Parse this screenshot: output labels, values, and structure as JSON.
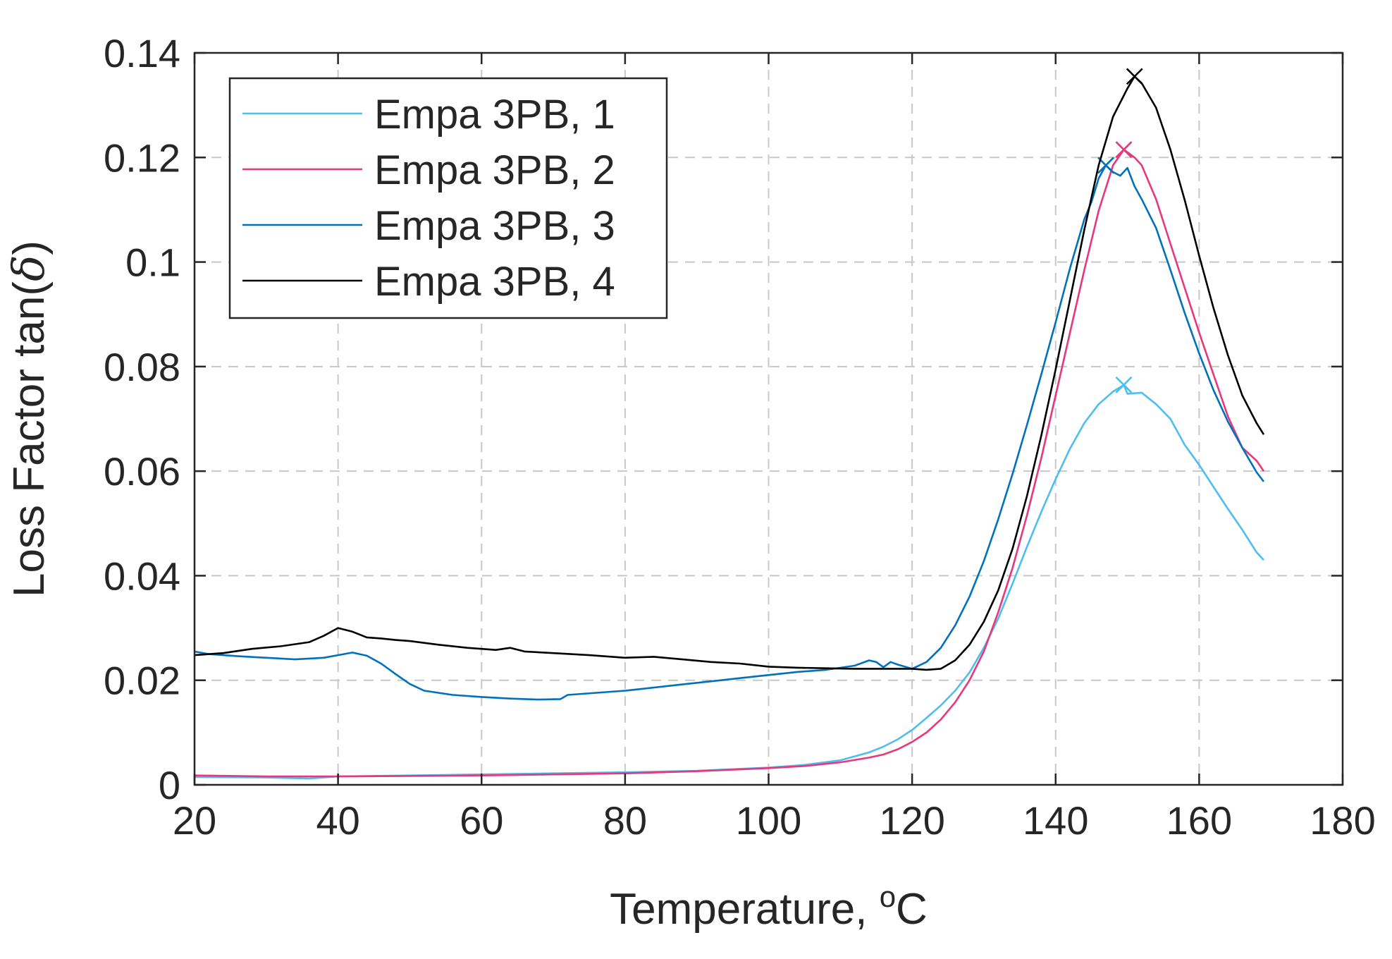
{
  "chart_data": {
    "type": "line",
    "title": "",
    "xlabel": "Temperature, ",
    "xlabel_unit_sup": "o",
    "xlabel_unit": "C",
    "ylabel": "Loss Factor tan(",
    "ylabel_symbol": "δ",
    "ylabel_close": ")",
    "xlim": [
      20,
      180
    ],
    "ylim": [
      0,
      0.14
    ],
    "xticks": [
      20,
      40,
      60,
      80,
      100,
      120,
      140,
      160,
      180
    ],
    "xtick_labels": [
      "20",
      "40",
      "60",
      "80",
      "100",
      "120",
      "140",
      "160",
      "180"
    ],
    "yticks": [
      0,
      0.02,
      0.04,
      0.06,
      0.08,
      0.1,
      0.12,
      0.14
    ],
    "ytick_labels": [
      "0",
      "0.02",
      "0.04",
      "0.06",
      "0.08",
      "0.1",
      "0.12",
      "0.14"
    ],
    "grid": true,
    "legend_position": "top-left",
    "series": [
      {
        "name": "Empa 3PB, 1",
        "color": "#4DBEEE",
        "peak": [
          149.5,
          0.0765
        ],
        "points": [
          [
            20,
            0.0015
          ],
          [
            30,
            0.0014
          ],
          [
            36,
            0.0012
          ],
          [
            40,
            0.0016
          ],
          [
            50,
            0.0018
          ],
          [
            60,
            0.002
          ],
          [
            70,
            0.0022
          ],
          [
            80,
            0.0024
          ],
          [
            90,
            0.0027
          ],
          [
            100,
            0.0033
          ],
          [
            105,
            0.0038
          ],
          [
            110,
            0.0047
          ],
          [
            114,
            0.0062
          ],
          [
            116,
            0.0073
          ],
          [
            118,
            0.0087
          ],
          [
            120,
            0.0105
          ],
          [
            122,
            0.0128
          ],
          [
            124,
            0.0152
          ],
          [
            126,
            0.018
          ],
          [
            128,
            0.0215
          ],
          [
            130,
            0.0262
          ],
          [
            132,
            0.0318
          ],
          [
            134,
            0.0385
          ],
          [
            136,
            0.0455
          ],
          [
            138,
            0.0522
          ],
          [
            140,
            0.0585
          ],
          [
            142,
            0.0643
          ],
          [
            144,
            0.0692
          ],
          [
            146,
            0.0728
          ],
          [
            148,
            0.0752
          ],
          [
            149.5,
            0.0765
          ],
          [
            150,
            0.0748
          ],
          [
            152,
            0.075
          ],
          [
            154,
            0.0728
          ],
          [
            156,
            0.07
          ],
          [
            158,
            0.065
          ],
          [
            160,
            0.0612
          ],
          [
            162,
            0.057
          ],
          [
            164,
            0.0528
          ],
          [
            166,
            0.0488
          ],
          [
            168,
            0.0445
          ],
          [
            169,
            0.043
          ]
        ]
      },
      {
        "name": "Empa 3PB, 2",
        "color": "#E8377A",
        "peak": [
          149.5,
          0.1215
        ],
        "points": [
          [
            20,
            0.0018
          ],
          [
            30,
            0.0016
          ],
          [
            40,
            0.0016
          ],
          [
            50,
            0.0017
          ],
          [
            60,
            0.0018
          ],
          [
            70,
            0.002
          ],
          [
            80,
            0.0022
          ],
          [
            90,
            0.0026
          ],
          [
            100,
            0.0032
          ],
          [
            105,
            0.0036
          ],
          [
            110,
            0.0043
          ],
          [
            114,
            0.0052
          ],
          [
            116,
            0.0058
          ],
          [
            118,
            0.0068
          ],
          [
            120,
            0.0082
          ],
          [
            122,
            0.01
          ],
          [
            124,
            0.0125
          ],
          [
            126,
            0.0158
          ],
          [
            128,
            0.02
          ],
          [
            130,
            0.0255
          ],
          [
            132,
            0.033
          ],
          [
            134,
            0.0415
          ],
          [
            136,
            0.0515
          ],
          [
            138,
            0.0625
          ],
          [
            140,
            0.0745
          ],
          [
            142,
            0.0865
          ],
          [
            144,
            0.0985
          ],
          [
            146,
            0.1098
          ],
          [
            148,
            0.1185
          ],
          [
            149.5,
            0.1215
          ],
          [
            151,
            0.12
          ],
          [
            152,
            0.1185
          ],
          [
            154,
            0.112
          ],
          [
            156,
            0.1035
          ],
          [
            158,
            0.095
          ],
          [
            160,
            0.0865
          ],
          [
            162,
            0.0785
          ],
          [
            164,
            0.0705
          ],
          [
            166,
            0.0645
          ],
          [
            168,
            0.062
          ],
          [
            169,
            0.06
          ]
        ]
      },
      {
        "name": "Empa 3PB, 3",
        "color": "#0072BD",
        "peak": [
          147,
          0.1185
        ],
        "points": [
          [
            20,
            0.0255
          ],
          [
            22,
            0.025
          ],
          [
            26,
            0.0246
          ],
          [
            30,
            0.0243
          ],
          [
            34,
            0.024
          ],
          [
            38,
            0.0243
          ],
          [
            40,
            0.0248
          ],
          [
            42,
            0.0253
          ],
          [
            44,
            0.0247
          ],
          [
            46,
            0.0232
          ],
          [
            48,
            0.0212
          ],
          [
            50,
            0.0193
          ],
          [
            52,
            0.018
          ],
          [
            56,
            0.0172
          ],
          [
            60,
            0.0168
          ],
          [
            64,
            0.0165
          ],
          [
            68,
            0.0163
          ],
          [
            71,
            0.0164
          ],
          [
            72,
            0.0172
          ],
          [
            76,
            0.0176
          ],
          [
            80,
            0.018
          ],
          [
            84,
            0.0186
          ],
          [
            88,
            0.0192
          ],
          [
            92,
            0.0198
          ],
          [
            96,
            0.0204
          ],
          [
            100,
            0.021
          ],
          [
            104,
            0.0216
          ],
          [
            108,
            0.022
          ],
          [
            112,
            0.0228
          ],
          [
            114,
            0.0238
          ],
          [
            115,
            0.0235
          ],
          [
            116,
            0.0225
          ],
          [
            117,
            0.0235
          ],
          [
            118,
            0.023
          ],
          [
            120,
            0.0222
          ],
          [
            122,
            0.0235
          ],
          [
            124,
            0.0262
          ],
          [
            126,
            0.0305
          ],
          [
            128,
            0.036
          ],
          [
            130,
            0.0428
          ],
          [
            132,
            0.0508
          ],
          [
            134,
            0.0595
          ],
          [
            136,
            0.0688
          ],
          [
            138,
            0.0785
          ],
          [
            140,
            0.0885
          ],
          [
            142,
            0.0988
          ],
          [
            144,
            0.1082
          ],
          [
            145,
            0.1115
          ],
          [
            146,
            0.116
          ],
          [
            147,
            0.1185
          ],
          [
            148,
            0.1172
          ],
          [
            149,
            0.1165
          ],
          [
            150,
            0.118
          ],
          [
            151,
            0.1145
          ],
          [
            152,
            0.112
          ],
          [
            154,
            0.1065
          ],
          [
            156,
            0.0985
          ],
          [
            158,
            0.0902
          ],
          [
            160,
            0.0825
          ],
          [
            162,
            0.0755
          ],
          [
            164,
            0.0695
          ],
          [
            166,
            0.0645
          ],
          [
            168,
            0.0598
          ],
          [
            169,
            0.058
          ]
        ]
      },
      {
        "name": "Empa 3PB, 4",
        "color": "#000000",
        "peak": [
          151,
          0.1355
        ],
        "points": [
          [
            20,
            0.0248
          ],
          [
            24,
            0.0252
          ],
          [
            28,
            0.026
          ],
          [
            32,
            0.0265
          ],
          [
            36,
            0.0273
          ],
          [
            38,
            0.0285
          ],
          [
            40,
            0.03
          ],
          [
            42,
            0.0293
          ],
          [
            44,
            0.0282
          ],
          [
            46,
            0.028
          ],
          [
            48,
            0.0277
          ],
          [
            50,
            0.0275
          ],
          [
            54,
            0.0268
          ],
          [
            58,
            0.0262
          ],
          [
            62,
            0.0258
          ],
          [
            64,
            0.0262
          ],
          [
            66,
            0.0255
          ],
          [
            70,
            0.0252
          ],
          [
            75,
            0.0248
          ],
          [
            80,
            0.0243
          ],
          [
            84,
            0.0245
          ],
          [
            88,
            0.024
          ],
          [
            92,
            0.0235
          ],
          [
            96,
            0.0232
          ],
          [
            100,
            0.0226
          ],
          [
            104,
            0.0224
          ],
          [
            108,
            0.0223
          ],
          [
            112,
            0.0222
          ],
          [
            116,
            0.0222
          ],
          [
            120,
            0.0222
          ],
          [
            122,
            0.022
          ],
          [
            124,
            0.0222
          ],
          [
            126,
            0.0238
          ],
          [
            128,
            0.0268
          ],
          [
            130,
            0.0312
          ],
          [
            132,
            0.0372
          ],
          [
            134,
            0.0452
          ],
          [
            136,
            0.0552
          ],
          [
            138,
            0.0668
          ],
          [
            140,
            0.0795
          ],
          [
            142,
            0.0928
          ],
          [
            144,
            0.1062
          ],
          [
            146,
            0.1185
          ],
          [
            148,
            0.1278
          ],
          [
            150,
            0.1332
          ],
          [
            151,
            0.1355
          ],
          [
            152,
            0.1342
          ],
          [
            154,
            0.1295
          ],
          [
            156,
            0.1215
          ],
          [
            158,
            0.1118
          ],
          [
            160,
            0.1012
          ],
          [
            162,
            0.0912
          ],
          [
            164,
            0.0822
          ],
          [
            166,
            0.0745
          ],
          [
            168,
            0.0692
          ],
          [
            169,
            0.067
          ]
        ]
      }
    ]
  }
}
